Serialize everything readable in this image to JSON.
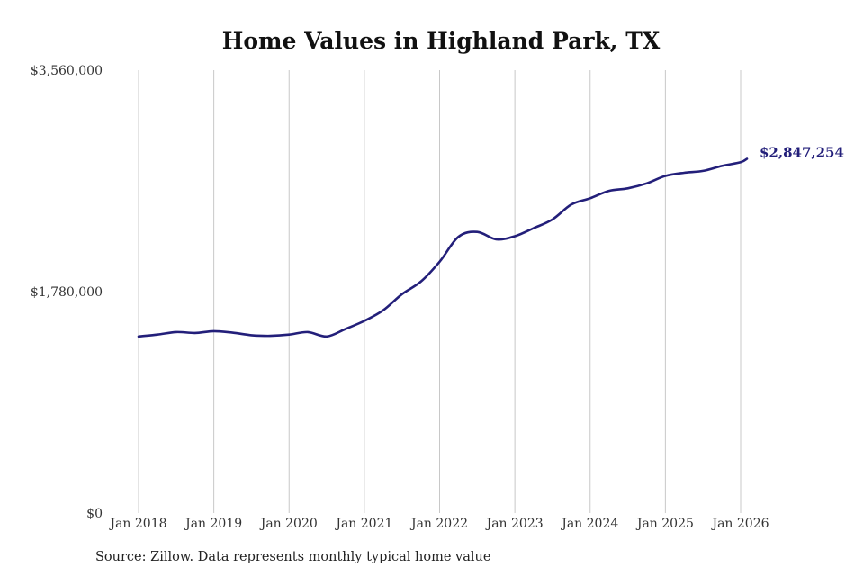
{
  "chart_data": {
    "type": "line",
    "title": "Home Values in Highland Park, TX",
    "xlabel": "",
    "ylabel": "",
    "ylim": [
      0,
      3560000
    ],
    "y_ticks": [
      0,
      1780000,
      3560000
    ],
    "y_tick_labels": [
      "$0",
      "$1,780,000",
      "$3,560,000"
    ],
    "x_ticks": [
      "Jan 2018",
      "Jan 2019",
      "Jan 2020",
      "Jan 2021",
      "Jan 2022",
      "Jan 2023",
      "Jan 2024",
      "Jan 2025",
      "Jan 2026"
    ],
    "grid": "vertical",
    "legend": "none",
    "end_label": "$2,847,254",
    "line_color": "#231f7a",
    "series": [
      {
        "points": [
          [
            "2018-01",
            1420000
          ],
          [
            "2018-04",
            1435000
          ],
          [
            "2018-07",
            1455000
          ],
          [
            "2018-10",
            1448000
          ],
          [
            "2019-01",
            1462000
          ],
          [
            "2019-04",
            1450000
          ],
          [
            "2019-07",
            1430000
          ],
          [
            "2019-10",
            1425000
          ],
          [
            "2020-01",
            1435000
          ],
          [
            "2020-04",
            1455000
          ],
          [
            "2020-07",
            1420000
          ],
          [
            "2020-10",
            1480000
          ],
          [
            "2021-01",
            1545000
          ],
          [
            "2021-04",
            1630000
          ],
          [
            "2021-07",
            1760000
          ],
          [
            "2021-10",
            1860000
          ],
          [
            "2022-01",
            2020000
          ],
          [
            "2022-04",
            2220000
          ],
          [
            "2022-07",
            2260000
          ],
          [
            "2022-10",
            2200000
          ],
          [
            "2023-01",
            2225000
          ],
          [
            "2023-04",
            2290000
          ],
          [
            "2023-07",
            2360000
          ],
          [
            "2023-10",
            2480000
          ],
          [
            "2024-01",
            2530000
          ],
          [
            "2024-04",
            2590000
          ],
          [
            "2024-07",
            2610000
          ],
          [
            "2024-10",
            2650000
          ],
          [
            "2025-01",
            2710000
          ],
          [
            "2025-04",
            2735000
          ],
          [
            "2025-07",
            2750000
          ],
          [
            "2025-10",
            2790000
          ],
          [
            "2026-01",
            2820000
          ],
          [
            "2026-02",
            2847254
          ]
        ]
      }
    ]
  },
  "source_text": "Source: Zillow. Data represents monthly typical home value"
}
